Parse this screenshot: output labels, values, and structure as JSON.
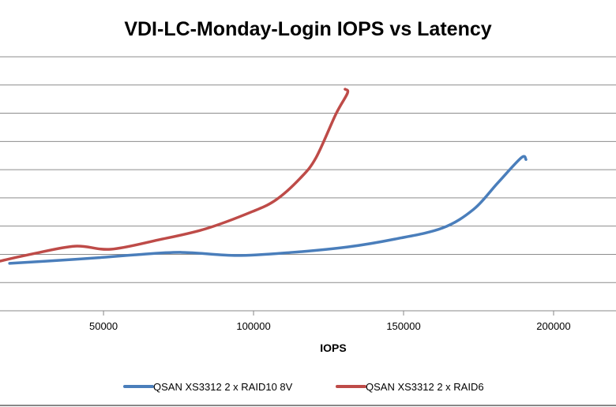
{
  "chart_data": {
    "type": "line",
    "title": "VDI-LC-Monday-Login IOPS vs Latency",
    "xlabel": "IOPS",
    "ylabel": "",
    "x_ticks": [
      "50000",
      "100000",
      "150000",
      "200000"
    ],
    "x_tick_values": [
      50000,
      100000,
      150000,
      200000
    ],
    "xlim": [
      15500,
      220800
    ],
    "ylim": [
      0,
      9
    ],
    "y_note": "y-axis tick labels not visible; y in gridline units",
    "grid": true,
    "legend_position": "bottom",
    "series": [
      {
        "name": "QSAN XS3312 2 x RAID10 8V",
        "color": "#4a7ebb",
        "x": [
          18700,
          31300,
          50800,
          60300,
          76000,
          94500,
          112900,
          131300,
          147100,
          162900,
          173400,
          181300,
          189200,
          190800
        ],
        "y": [
          1.68,
          1.76,
          1.9,
          1.98,
          2.07,
          1.96,
          2.07,
          2.26,
          2.54,
          2.93,
          3.6,
          4.52,
          5.42,
          5.36
        ]
      },
      {
        "name": "QSAN XS3312 2 x RAID6",
        "color": "#be4b48",
        "x": [
          15500,
          26100,
          40500,
          52400,
          68200,
          83900,
          99700,
          107600,
          115500,
          120800,
          127400,
          131300,
          130500
        ],
        "y": [
          1.76,
          2.01,
          2.29,
          2.18,
          2.51,
          2.9,
          3.52,
          3.94,
          4.69,
          5.42,
          6.96,
          7.71,
          7.85
        ]
      }
    ]
  }
}
